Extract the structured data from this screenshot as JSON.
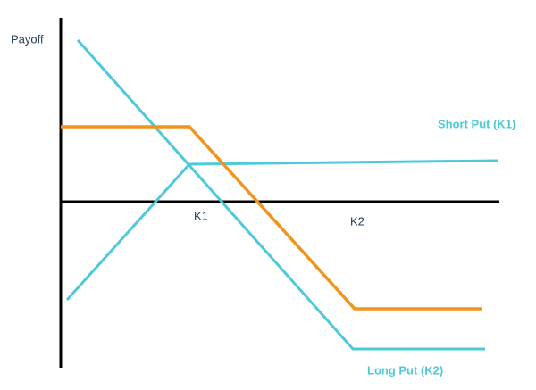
{
  "axis_label": "Payoff",
  "strikes": [
    "K1",
    "K2"
  ],
  "legend": {
    "short_put": "Short Put (K1)",
    "long_put": "Long Put (K2)"
  }
}
